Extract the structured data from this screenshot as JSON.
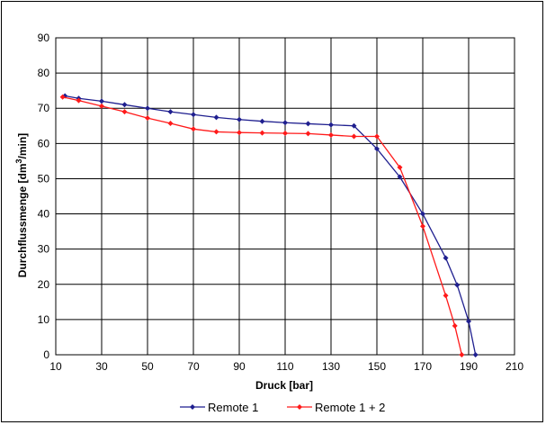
{
  "chart_data": {
    "type": "line",
    "xlabel": "Druck [bar]",
    "ylabel": {
      "pre": "Durchflussmenge [dm",
      "sup": "3",
      "post": "/min]"
    },
    "xlim": [
      10,
      210
    ],
    "ylim": [
      0,
      90
    ],
    "x_ticks": [
      10,
      30,
      50,
      70,
      90,
      110,
      130,
      150,
      170,
      190,
      210
    ],
    "y_ticks": [
      0,
      10,
      20,
      30,
      40,
      50,
      60,
      70,
      80,
      90
    ],
    "grid": true,
    "legend_position": "bottom",
    "series": [
      {
        "name": "Remote 1",
        "color": "#1f1f8f",
        "points": [
          [
            14,
            73.5
          ],
          [
            20,
            72.8
          ],
          [
            30,
            72
          ],
          [
            40,
            71
          ],
          [
            50,
            70
          ],
          [
            60,
            69
          ],
          [
            70,
            68.2
          ],
          [
            80,
            67.4
          ],
          [
            90,
            66.8
          ],
          [
            100,
            66.3
          ],
          [
            110,
            65.9
          ],
          [
            120,
            65.6
          ],
          [
            130,
            65.3
          ],
          [
            140,
            65
          ],
          [
            150,
            58.5
          ],
          [
            160,
            50.5
          ],
          [
            170,
            40
          ],
          [
            180,
            27.5
          ],
          [
            185,
            19.8
          ],
          [
            190,
            9.5
          ],
          [
            193,
            0
          ]
        ]
      },
      {
        "name": "Remote 1 + 2",
        "color": "#ff1a1a",
        "points": [
          [
            13,
            73.2
          ],
          [
            20,
            72.2
          ],
          [
            30,
            70.6
          ],
          [
            40,
            69
          ],
          [
            50,
            67.2
          ],
          [
            60,
            65.7
          ],
          [
            70,
            64.1
          ],
          [
            80,
            63.3
          ],
          [
            90,
            63.1
          ],
          [
            100,
            63
          ],
          [
            110,
            62.9
          ],
          [
            120,
            62.8
          ],
          [
            130,
            62.4
          ],
          [
            140,
            62
          ],
          [
            150,
            62
          ],
          [
            160,
            53.2
          ],
          [
            170,
            36.5
          ],
          [
            180,
            16.8
          ],
          [
            184,
            8.2
          ],
          [
            187,
            0
          ]
        ]
      }
    ]
  }
}
